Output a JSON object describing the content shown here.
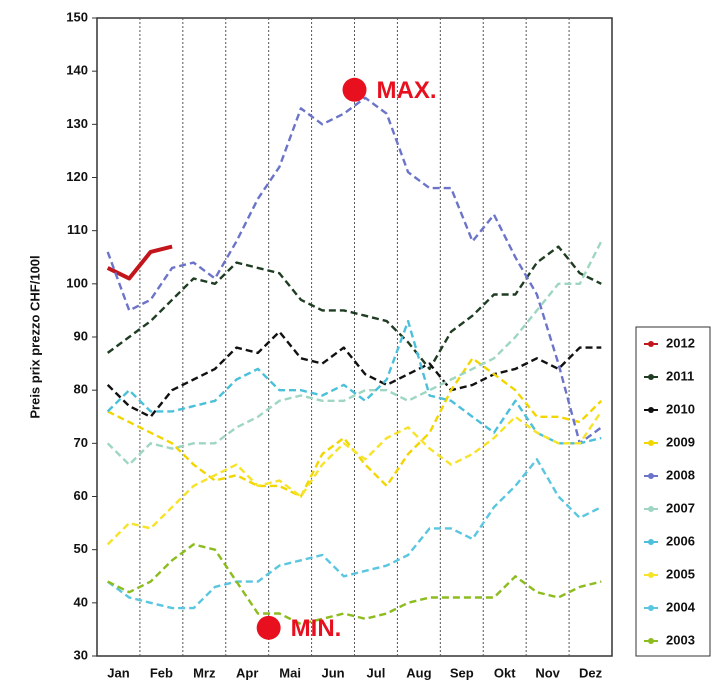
{
  "chart_data": {
    "type": "line",
    "y_label": "Preis prix prezzo CHF/100l",
    "x": [
      0.25,
      0.75,
      1.25,
      1.75,
      2.25,
      2.75,
      3.25,
      3.75,
      4.25,
      4.75,
      5.25,
      5.75,
      6.25,
      6.75,
      7.25,
      7.75,
      8.25,
      8.75,
      9.25,
      9.75,
      10.25,
      10.75,
      11.25,
      11.75
    ],
    "xlim": [
      0,
      12
    ],
    "xticks": [
      {
        "value": 0.5,
        "label": "Jan"
      },
      {
        "value": 1.5,
        "label": "Feb"
      },
      {
        "value": 2.5,
        "label": "Mrz"
      },
      {
        "value": 3.5,
        "label": "Apr"
      },
      {
        "value": 4.5,
        "label": "Mai"
      },
      {
        "value": 5.5,
        "label": "Jun"
      },
      {
        "value": 6.5,
        "label": "Jul"
      },
      {
        "value": 7.5,
        "label": "Aug"
      },
      {
        "value": 8.5,
        "label": "Sep"
      },
      {
        "value": 9.5,
        "label": "Okt"
      },
      {
        "value": 10.5,
        "label": "Nov"
      },
      {
        "value": 11.5,
        "label": "Dez"
      }
    ],
    "ylim": [
      30,
      150
    ],
    "yticks": [
      30,
      40,
      50,
      60,
      70,
      80,
      90,
      100,
      110,
      120,
      130,
      140,
      150
    ],
    "series": [
      {
        "name": "2012",
        "color": "#c3161c",
        "style": "solid",
        "values": [
          103,
          101,
          106,
          107,
          null,
          null,
          null,
          null,
          null,
          null,
          null,
          null,
          null,
          null,
          null,
          null,
          null,
          null,
          null,
          null,
          null,
          null,
          null,
          null
        ]
      },
      {
        "name": "2011",
        "color": "#1f3d22",
        "style": "dashed",
        "values": [
          87,
          90,
          93,
          97,
          101,
          100,
          104,
          103,
          102,
          97,
          95,
          95,
          94,
          93,
          89,
          84,
          91,
          94,
          98,
          98,
          104,
          107,
          102,
          100
        ]
      },
      {
        "name": "2010",
        "color": "#111111",
        "style": "dashed",
        "values": [
          81,
          77,
          75,
          80,
          82,
          84,
          88,
          87,
          91,
          86,
          85,
          88,
          83,
          81,
          83,
          85,
          80,
          81,
          83,
          84,
          86,
          84,
          88,
          88
        ]
      },
      {
        "name": "2009",
        "color": "#f2d600",
        "style": "dashed",
        "values": [
          76,
          74,
          72,
          70,
          66,
          63,
          64,
          62,
          62,
          60,
          68,
          71,
          66,
          62,
          68,
          72,
          80,
          86,
          83,
          80,
          75,
          75,
          74,
          78
        ]
      },
      {
        "name": "2008",
        "color": "#6b74c9",
        "style": "dashed",
        "values": [
          106,
          95,
          97,
          103,
          104,
          101,
          108,
          116,
          122,
          133,
          130,
          132,
          135,
          132,
          121,
          118,
          118,
          108,
          113,
          105,
          98,
          85,
          70,
          73
        ]
      },
      {
        "name": "2007",
        "color": "#9fd6c2",
        "style": "dashed",
        "values": [
          70,
          66,
          70,
          69,
          70,
          70,
          73,
          75,
          78,
          79,
          78,
          78,
          80,
          80,
          78,
          80,
          82,
          84,
          86,
          90,
          95,
          100,
          100,
          108
        ]
      },
      {
        "name": "2006",
        "color": "#4cc0da",
        "style": "dashed",
        "values": [
          76,
          80,
          76,
          76,
          77,
          78,
          82,
          84,
          80,
          80,
          79,
          81,
          78,
          82,
          93,
          79,
          78,
          75,
          72,
          78,
          72,
          70,
          70,
          71
        ]
      },
      {
        "name": "2005",
        "color": "#f6e32a",
        "style": "dashed",
        "values": [
          51,
          55,
          54,
          58,
          62,
          64,
          66,
          62,
          63,
          60,
          66,
          70,
          67,
          71,
          73,
          69,
          66,
          68,
          71,
          75,
          72,
          70,
          70,
          76
        ]
      },
      {
        "name": "2004",
        "color": "#5ac6e0",
        "style": "dashed",
        "values": [
          44,
          41,
          40,
          39,
          39,
          43,
          44,
          44,
          47,
          48,
          49,
          45,
          46,
          47,
          49,
          54,
          54,
          52,
          58,
          62,
          67,
          60,
          56,
          58
        ]
      },
      {
        "name": "2003",
        "color": "#8cbc1e",
        "style": "dashed",
        "values": [
          44,
          42,
          44,
          48,
          51,
          50,
          44,
          38,
          38,
          36,
          37,
          38,
          37,
          38,
          40,
          41,
          41,
          41,
          41,
          45,
          42,
          41,
          43,
          44
        ]
      }
    ],
    "annotations": [
      {
        "text": "MAX.",
        "x": 6.0,
        "y": 136.5,
        "color": "#e8101e"
      },
      {
        "text": "MIN.",
        "x": 4.0,
        "y": 35.3,
        "color": "#e8101e"
      }
    ]
  }
}
